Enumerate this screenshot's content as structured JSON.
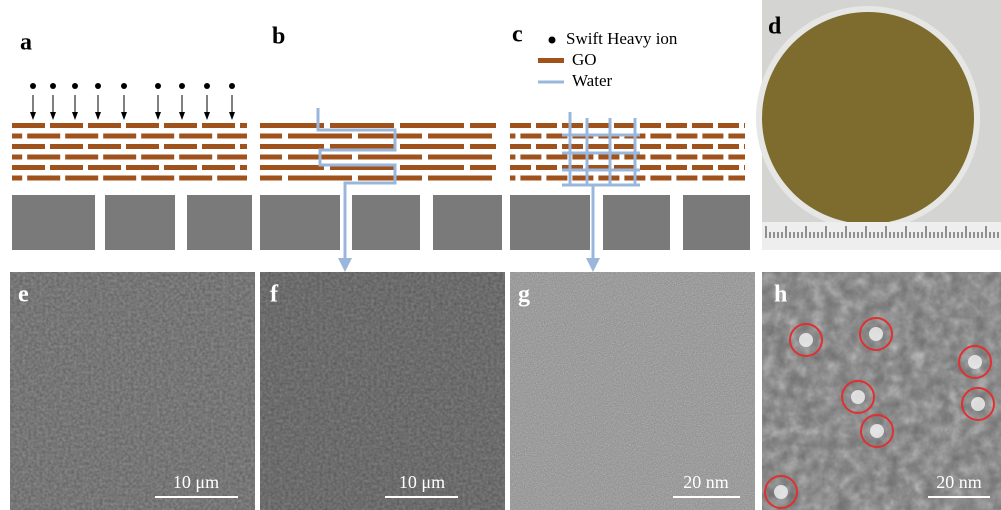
{
  "legend": {
    "items": [
      "Swift Heavy ion",
      "GO",
      "Water"
    ]
  },
  "panels": [
    {
      "label": "a"
    },
    {
      "label": "b"
    },
    {
      "label": "c"
    },
    {
      "label": "d"
    },
    {
      "label": "e",
      "scale_bar": "10 μm"
    },
    {
      "label": "f",
      "scale_bar": "10 μm"
    },
    {
      "label": "g",
      "scale_bar": "20 nm"
    },
    {
      "label": "h",
      "scale_bar": "20 nm"
    }
  ]
}
